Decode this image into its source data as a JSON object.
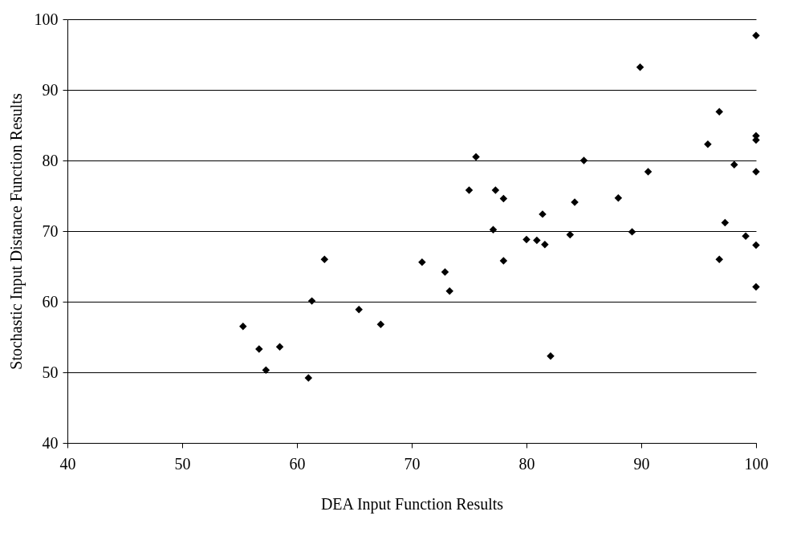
{
  "chart_data": {
    "type": "scatter",
    "xlabel": "DEA Input Function Results",
    "ylabel": "Stochastic Input Distance Function Results",
    "x": [
      55.3,
      56.7,
      57.3,
      58.5,
      61.0,
      61.3,
      62.4,
      65.4,
      67.3,
      70.9,
      72.9,
      73.3,
      75.0,
      75.6,
      77.1,
      77.3,
      78.0,
      78.0,
      80.0,
      80.9,
      81.4,
      81.6,
      82.1,
      83.8,
      84.2,
      85.0,
      88.0,
      89.2,
      89.9,
      90.6,
      95.8,
      96.8,
      96.8,
      97.3,
      98.1,
      99.1,
      100,
      100,
      100,
      100,
      100,
      100
    ],
    "series": [
      {
        "color": "#000000",
        "values": [
          56.5,
          53.3,
          50.3,
          53.6,
          49.2,
          60.1,
          66.0,
          58.9,
          56.8,
          65.6,
          64.2,
          61.5,
          75.8,
          80.5,
          70.2,
          75.8,
          74.6,
          65.8,
          68.8,
          68.7,
          72.4,
          68.1,
          52.3,
          69.5,
          74.1,
          80.0,
          74.7,
          69.9,
          93.2,
          78.4,
          82.3,
          86.9,
          66.0,
          71.2,
          79.4,
          69.3,
          97.7,
          83.5,
          82.9,
          78.4,
          68.0,
          62.1
        ]
      }
    ],
    "xlim": [
      40,
      100
    ],
    "xticks": [
      40,
      50,
      60,
      70,
      80,
      90,
      100
    ],
    "ylim": [
      40,
      100
    ],
    "yticks": [
      40,
      50,
      60,
      70,
      80,
      90,
      100
    ],
    "grid": "y",
    "marker": "diamond"
  }
}
